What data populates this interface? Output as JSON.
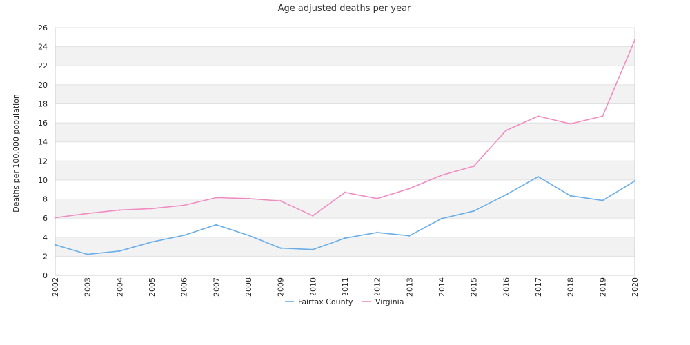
{
  "chart_data": {
    "type": "line",
    "title": "Age adjusted deaths per year",
    "xlabel": "",
    "ylabel": "Deaths per 100,000 population",
    "categories": [
      "2002",
      "2003",
      "2004",
      "2005",
      "2006",
      "2007",
      "2008",
      "2009",
      "2010",
      "2011",
      "2012",
      "2013",
      "2014",
      "2015",
      "2016",
      "2017",
      "2018",
      "2019",
      "2020"
    ],
    "ylim": [
      0,
      26
    ],
    "yticks": [
      0,
      2,
      4,
      6,
      8,
      10,
      12,
      14,
      16,
      18,
      20,
      22,
      24,
      26
    ],
    "grid": "horizontal alternating bands",
    "legend_position": "bottom-center",
    "series": [
      {
        "name": "Fairfax County",
        "color": "#6aaee8",
        "values": [
          3.2,
          2.2,
          2.55,
          3.5,
          4.2,
          5.3,
          4.2,
          2.85,
          2.7,
          3.9,
          4.5,
          4.15,
          5.95,
          6.75,
          8.45,
          10.35,
          8.35,
          7.85,
          9.9
        ]
      },
      {
        "name": "Virginia",
        "color": "#f08cc0",
        "values": [
          6.05,
          6.5,
          6.85,
          7.0,
          7.35,
          8.15,
          8.05,
          7.8,
          6.25,
          8.7,
          8.05,
          9.1,
          10.5,
          11.45,
          15.2,
          16.7,
          15.9,
          16.7,
          24.7
        ]
      }
    ]
  }
}
